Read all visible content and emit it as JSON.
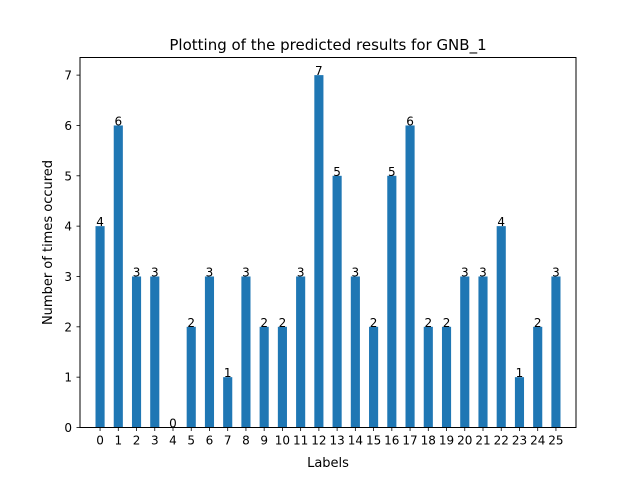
{
  "chart_data": {
    "type": "bar",
    "title": "Plotting of the predicted results for GNB_1",
    "xlabel": "Labels",
    "ylabel": "Number of times occured",
    "categories": [
      "0",
      "1",
      "2",
      "3",
      "4",
      "5",
      "6",
      "7",
      "8",
      "9",
      "10",
      "11",
      "12",
      "13",
      "14",
      "15",
      "16",
      "17",
      "18",
      "19",
      "20",
      "21",
      "22",
      "23",
      "24",
      "25"
    ],
    "values": [
      4,
      6,
      3,
      3,
      0,
      2,
      3,
      1,
      3,
      2,
      2,
      3,
      7,
      5,
      3,
      2,
      5,
      6,
      2,
      2,
      3,
      3,
      4,
      1,
      2,
      3
    ],
    "ylim": [
      0,
      7.35
    ],
    "yticks": [
      0,
      1,
      2,
      3,
      4,
      5,
      6,
      7
    ],
    "bar_color": "#1f77b4",
    "grid": false,
    "data_labels": true
  }
}
